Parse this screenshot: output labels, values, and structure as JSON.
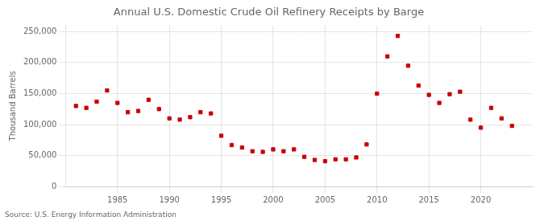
{
  "chart_data": {
    "type": "scatter",
    "title": "Annual U.S. Domestic Crude Oil Refinery Receipts by Barge",
    "y_label": "Thousand Barrels",
    "annotation": "Source: U.S. Energy Information Administration",
    "x": [
      1981,
      1982,
      1983,
      1984,
      1985,
      1986,
      1987,
      1988,
      1989,
      1990,
      1991,
      1992,
      1993,
      1994,
      1995,
      1996,
      1997,
      1998,
      1999,
      2000,
      2001,
      2002,
      2003,
      2004,
      2005,
      2006,
      2007,
      2008,
      2009,
      2010,
      2011,
      2012,
      2013,
      2014,
      2015,
      2016,
      2017,
      2018,
      2019,
      2020,
      2021,
      2022,
      2023
    ],
    "values": [
      130000,
      127000,
      137000,
      155000,
      135000,
      120000,
      122000,
      140000,
      125000,
      110000,
      108000,
      112000,
      120000,
      118000,
      82000,
      67000,
      63000,
      57000,
      56000,
      60000,
      57000,
      60000,
      48000,
      43000,
      41000,
      44000,
      44000,
      47000,
      68000,
      150000,
      210000,
      243000,
      195000,
      163000,
      148000,
      135000,
      149000,
      153000,
      108000,
      95000,
      127000,
      110000,
      98000
    ],
    "color": "#CC0000",
    "marker": "square",
    "xlim": [
      1980,
      2025
    ],
    "xticks": [
      1985,
      1990,
      1995,
      2000,
      2005,
      2010,
      2015,
      2020
    ],
    "ylim": [
      0,
      260000
    ],
    "yticks": [
      0,
      {
        "value": 50000,
        "label": "50,000"
      },
      {
        "value": 100000,
        "label": "100,000"
      },
      {
        "value": 150000,
        "label": "150,000"
      },
      {
        "value": 200000,
        "label": "200,000"
      },
      {
        "value": 250000,
        "label": "250,000"
      }
    ],
    "grid": true
  }
}
